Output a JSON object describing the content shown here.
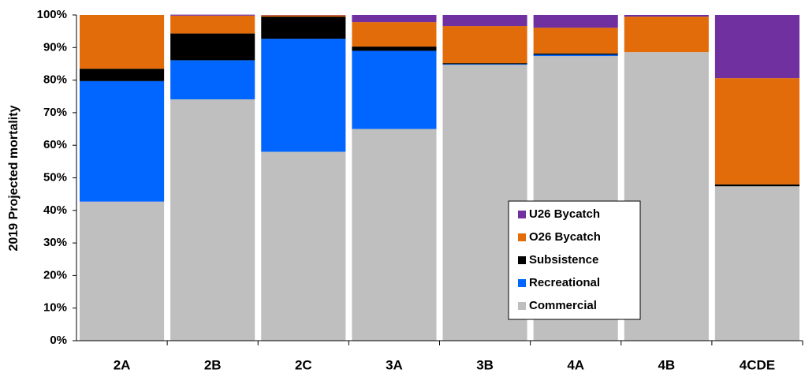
{
  "chart_data": {
    "type": "stacked_bar",
    "y_label": "2019 Projected mortality",
    "categories": [
      "2A",
      "2B",
      "2C",
      "3A",
      "3B",
      "4A",
      "4B",
      "4CDE"
    ],
    "series": [
      {
        "name": "Commercial",
        "color": "#bfbfbf",
        "values": [
          42.7,
          74.1,
          58,
          65,
          84.7,
          87.4,
          88.6,
          47.4
        ]
      },
      {
        "name": "Recreational",
        "color": "#0066ff",
        "values": [
          37,
          12,
          34.7,
          24,
          0.2,
          0.4,
          0,
          0
        ]
      },
      {
        "name": "Subsistence",
        "color": "#000000",
        "values": [
          3.8,
          8.2,
          6.8,
          1.3,
          0.3,
          0.4,
          0,
          0.6
        ]
      },
      {
        "name": "O26 Bycatch",
        "color": "#e36c0a",
        "values": [
          16.5,
          5.5,
          0.4,
          7.5,
          11.4,
          7.9,
          10.9,
          32.6
        ]
      },
      {
        "name": "U26 Bycatch",
        "color": "#7030a0",
        "values": [
          0,
          0.3,
          0.1,
          2.2,
          3.4,
          3.9,
          0.5,
          19.4
        ]
      }
    ],
    "ylim": [
      0,
      100
    ],
    "yticks": [
      {
        "value": 0,
        "label": "0%"
      },
      {
        "value": 10,
        "label": "10%"
      },
      {
        "value": 20,
        "label": "20%"
      },
      {
        "value": 30,
        "label": "30%"
      },
      {
        "value": 40,
        "label": "40%"
      },
      {
        "value": 50,
        "label": "50%"
      },
      {
        "value": 60,
        "label": "60%"
      },
      {
        "value": 70,
        "label": "70%"
      },
      {
        "value": 80,
        "label": "80%"
      },
      {
        "value": 90,
        "label": "90%"
      },
      {
        "value": 100,
        "label": "100%"
      }
    ],
    "legend": "lower-right"
  }
}
